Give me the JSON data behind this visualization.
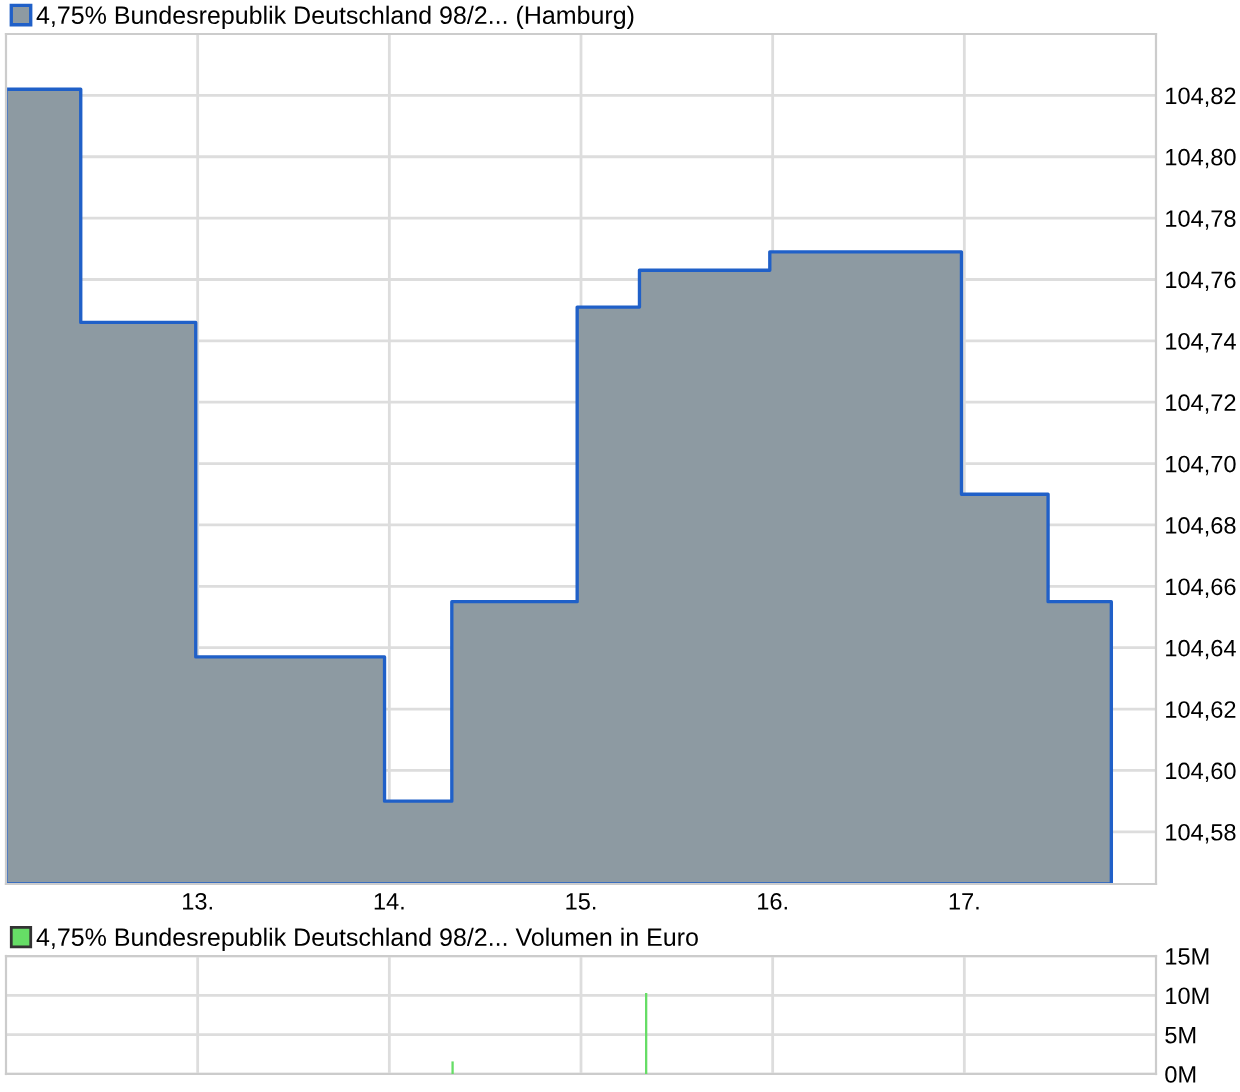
{
  "chart_data": [
    {
      "type": "area",
      "x": [
        12.0,
        12.39,
        12.99,
        13.975,
        14.326,
        14.98,
        15.305,
        15.985,
        16.985,
        17.437,
        17.767
      ],
      "series": [
        {
          "name": "4,75% Bundesrepublik Deutschland 98/2... (Hamburg)",
          "color": "#8d9aa2",
          "values": [
            104.822,
            104.746,
            104.637,
            104.59,
            104.655,
            104.751,
            104.763,
            104.769,
            104.69,
            104.655,
            104.655
          ]
        }
      ],
      "xlim": [
        12,
        18
      ],
      "xticks": [
        {
          "value": 13,
          "label": "13."
        },
        {
          "value": 14,
          "label": "14."
        },
        {
          "value": 15,
          "label": "15."
        },
        {
          "value": 16,
          "label": "16."
        },
        {
          "value": 17,
          "label": "17."
        }
      ],
      "ylim": [
        104.563,
        104.84
      ],
      "yticks": [
        {
          "value": 104.58,
          "label": "104,58"
        },
        {
          "value": 104.6,
          "label": "104,60"
        },
        {
          "value": 104.62,
          "label": "104,62"
        },
        {
          "value": 104.64,
          "label": "104,64"
        },
        {
          "value": 104.66,
          "label": "104,66"
        },
        {
          "value": 104.68,
          "label": "104,68"
        },
        {
          "value": 104.7,
          "label": "104,70"
        },
        {
          "value": 104.72,
          "label": "104,72"
        },
        {
          "value": 104.74,
          "label": "104,74"
        },
        {
          "value": 104.76,
          "label": "104,76"
        },
        {
          "value": 104.78,
          "label": "104,78"
        },
        {
          "value": 104.8,
          "label": "104,80"
        },
        {
          "value": 104.82,
          "label": "104,82"
        }
      ],
      "grid": true,
      "legend": "top left"
    },
    {
      "type": "bar",
      "x": [
        14.33,
        15.34
      ],
      "series": [
        {
          "name": "4,75% Bundesrepublik Deutschland 98/2... Volumen in Euro",
          "color": "#66dd66",
          "values": [
            1.6,
            10.3
          ]
        }
      ],
      "xlim": [
        12,
        18
      ],
      "xticks": [
        {
          "value": 13,
          "label": null
        },
        {
          "value": 14,
          "label": null
        },
        {
          "value": 15,
          "label": null
        },
        {
          "value": 16,
          "label": null
        },
        {
          "value": 17,
          "label": null
        }
      ],
      "ylim": [
        0,
        15
      ],
      "yticks": [
        {
          "value": 0,
          "label": "0M"
        },
        {
          "value": 5,
          "label": "5M"
        },
        {
          "value": 10,
          "label": "10M"
        },
        {
          "value": 15,
          "label": "15M"
        }
      ],
      "grid": true,
      "legend": "top left",
      "tick_labels": "y"
    }
  ]
}
